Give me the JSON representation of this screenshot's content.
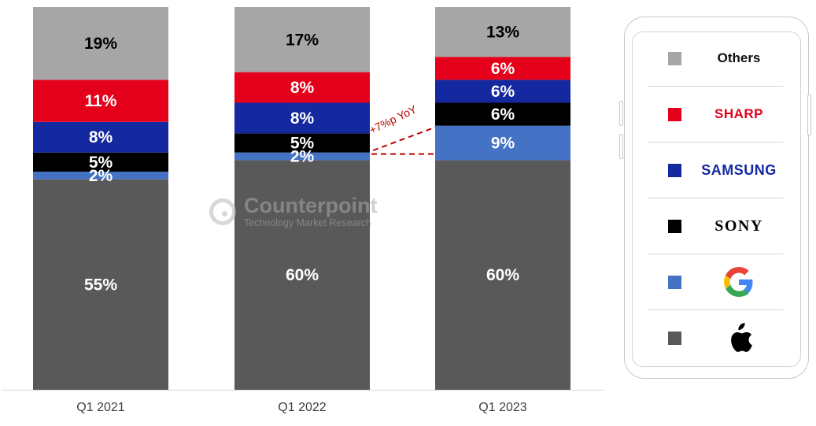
{
  "chart_data": {
    "type": "stacked-bar",
    "categories": [
      "Q1 2021",
      "Q1 2022",
      "Q1 2023"
    ],
    "ylim": [
      0,
      100
    ],
    "series": [
      {
        "key": "apple",
        "color": "#595959",
        "values": [
          55,
          60,
          60
        ],
        "labels": [
          "55%",
          "60%",
          "60%"
        ]
      },
      {
        "key": "google",
        "color": "#4472c4",
        "values": [
          2,
          2,
          9
        ],
        "labels": [
          "2%",
          "2%",
          "9%"
        ]
      },
      {
        "key": "sony",
        "color": "#000000",
        "values": [
          5,
          5,
          6
        ],
        "labels": [
          "5%",
          "5%",
          "6%"
        ]
      },
      {
        "key": "samsung",
        "color": "#1428a0",
        "values": [
          8,
          8,
          6
        ],
        "labels": [
          "8%",
          "8%",
          "6%"
        ]
      },
      {
        "key": "sharp",
        "color": "#e4001b",
        "values": [
          11,
          8,
          6
        ],
        "labels": [
          "11%",
          "8%",
          "6%"
        ]
      },
      {
        "key": "others",
        "color": "#a6a6a6",
        "values": [
          19,
          17,
          13
        ],
        "labels": [
          "19%",
          "17%",
          "13%"
        ]
      }
    ],
    "annotation": {
      "text": "+7%p YoY",
      "color": "#c00000"
    },
    "legend_position": "right"
  },
  "legend": [
    {
      "key": "others",
      "text": "Others",
      "swatch": "#a6a6a6",
      "icon": "text"
    },
    {
      "key": "sharp",
      "text": "SHARP",
      "swatch": "#e4001b",
      "icon": "sharp-logo"
    },
    {
      "key": "samsung",
      "text": "SAMSUNG",
      "swatch": "#1428a0",
      "icon": "samsung-logo"
    },
    {
      "key": "sony",
      "text": "SONY",
      "swatch": "#000000",
      "icon": "sony-logo"
    },
    {
      "key": "google",
      "text": "G",
      "swatch": "#4472c4",
      "icon": "google-logo"
    },
    {
      "key": "apple",
      "text": "",
      "swatch": "#595959",
      "icon": "apple-logo"
    }
  ],
  "watermark": {
    "name": "Counterpoint",
    "tagline": "Technology Market Research"
  }
}
